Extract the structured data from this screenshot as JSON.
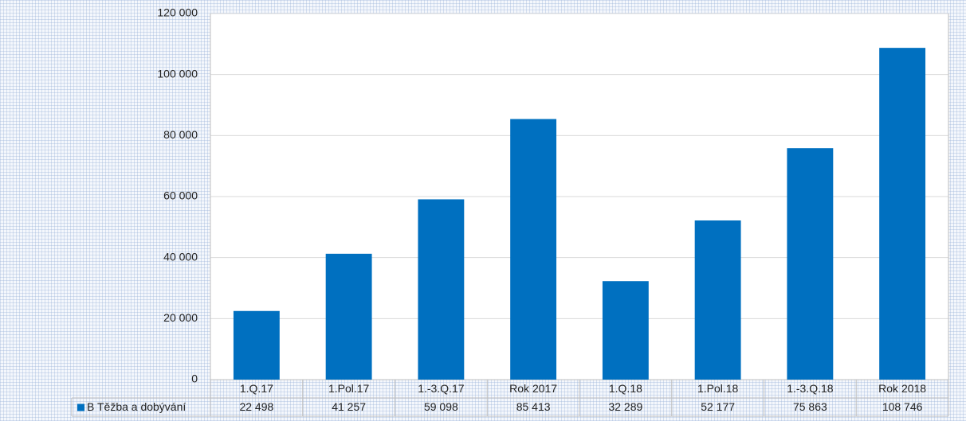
{
  "chart_data": {
    "type": "bar",
    "categories": [
      "1.Q.17",
      "1.Pol.17",
      "1.-3.Q.17",
      "Rok 2017",
      "1.Q.18",
      "1.Pol.18",
      "1.-3.Q.18",
      "Rok 2018"
    ],
    "series": [
      {
        "name": "B Těžba a dobývání",
        "color": "#0070c0",
        "values": [
          22498,
          41257,
          59098,
          85413,
          32289,
          52177,
          75863,
          108746
        ],
        "value_labels": [
          "22 498",
          "41 257",
          "59 098",
          "85 413",
          "32 289",
          "52 177",
          "75 863",
          "108 746"
        ]
      }
    ],
    "ylim": [
      0,
      120000
    ],
    "yticks": [
      0,
      {
        "value": 20000,
        "label": "20 000"
      },
      {
        "value": 40000,
        "label": "40 000"
      },
      {
        "value": 60000,
        "label": "60 000"
      },
      {
        "value": 80000,
        "label": "80 000"
      },
      {
        "value": 100000,
        "label": "100 000"
      },
      {
        "value": 120000,
        "label": "120 000"
      }
    ],
    "grid": true
  }
}
